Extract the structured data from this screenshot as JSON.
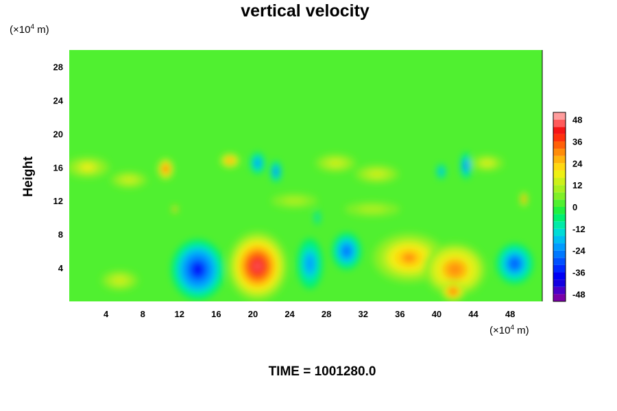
{
  "chart_data": {
    "type": "heatmap",
    "title": "vertical velocity",
    "ylabel": "Height",
    "x_unit_base": "(×10",
    "x_unit_exp": "4",
    "x_unit_tail": " m)",
    "y_unit_base": "(×10",
    "y_unit_exp": "4",
    "y_unit_tail": " m)",
    "xlim": [
      0,
      51.5
    ],
    "ylim": [
      0,
      30
    ],
    "x_ticks": [
      4,
      8,
      12,
      16,
      20,
      24,
      28,
      32,
      36,
      40,
      44,
      48
    ],
    "y_ticks": [
      4,
      8,
      12,
      16,
      20,
      24,
      28
    ],
    "colorbar": {
      "range": [
        -52,
        52
      ],
      "ticks": [
        48,
        36,
        24,
        12,
        0,
        -12,
        -24,
        -36,
        -48
      ],
      "levels": [
        {
          "lo": -52,
          "hi": -48,
          "color": "#7a00a8"
        },
        {
          "lo": -48,
          "hi": -44,
          "color": "#4a00c8"
        },
        {
          "lo": -44,
          "hi": -40,
          "color": "#1400e0"
        },
        {
          "lo": -40,
          "hi": -36,
          "color": "#0000f5"
        },
        {
          "lo": -36,
          "hi": -32,
          "color": "#0028ff"
        },
        {
          "lo": -32,
          "hi": -28,
          "color": "#0050ff"
        },
        {
          "lo": -28,
          "hi": -24,
          "color": "#0078ff"
        },
        {
          "lo": -24,
          "hi": -20,
          "color": "#009cff"
        },
        {
          "lo": -20,
          "hi": -16,
          "color": "#00bef2"
        },
        {
          "lo": -16,
          "hi": -12,
          "color": "#00dcd6"
        },
        {
          "lo": -12,
          "hi": -8,
          "color": "#00eba8"
        },
        {
          "lo": -8,
          "hi": -4,
          "color": "#00f070"
        },
        {
          "lo": -4,
          "hi": 0,
          "color": "#20f040"
        },
        {
          "lo": 0,
          "hi": 4,
          "color": "#50f030"
        },
        {
          "lo": 4,
          "hi": 8,
          "color": "#80f028"
        },
        {
          "lo": 8,
          "hi": 12,
          "color": "#a8f020"
        },
        {
          "lo": 12,
          "hi": 16,
          "color": "#cdf01a"
        },
        {
          "lo": 16,
          "hi": 20,
          "color": "#eef014"
        },
        {
          "lo": 20,
          "hi": 24,
          "color": "#ffd810"
        },
        {
          "lo": 24,
          "hi": 28,
          "color": "#ffb40c"
        },
        {
          "lo": 28,
          "hi": 32,
          "color": "#ff8c08"
        },
        {
          "lo": 32,
          "hi": 36,
          "color": "#ff6008"
        },
        {
          "lo": 36,
          "hi": 40,
          "color": "#ff300c"
        },
        {
          "lo": 40,
          "hi": 44,
          "color": "#f51414"
        },
        {
          "lo": 44,
          "hi": 48,
          "color": "#ff5a5a"
        },
        {
          "lo": 48,
          "hi": 52,
          "color": "#ff9c9c"
        }
      ]
    },
    "field_features": [
      {
        "x": 14.0,
        "y": 3.8,
        "rx": 2.9,
        "ry": 3.6,
        "value": -38
      },
      {
        "x": 20.5,
        "y": 4.2,
        "rx": 3.3,
        "ry": 4.2,
        "value": 46
      },
      {
        "x": 26.2,
        "y": 4.5,
        "rx": 1.4,
        "ry": 3.0,
        "value": -24
      },
      {
        "x": 30.2,
        "y": 6.0,
        "rx": 1.6,
        "ry": 2.2,
        "value": -30
      },
      {
        "x": 37.0,
        "y": 5.2,
        "rx": 4.0,
        "ry": 3.0,
        "value": 28
      },
      {
        "x": 42.0,
        "y": 3.8,
        "rx": 3.4,
        "ry": 3.2,
        "value": 30
      },
      {
        "x": 41.8,
        "y": 1.2,
        "rx": 1.3,
        "ry": 1.2,
        "value": 38
      },
      {
        "x": 48.5,
        "y": 4.5,
        "rx": 2.0,
        "ry": 2.4,
        "value": -32
      },
      {
        "x": 10.5,
        "y": 15.8,
        "rx": 0.9,
        "ry": 1.3,
        "value": 38
      },
      {
        "x": 17.5,
        "y": 16.8,
        "rx": 1.1,
        "ry": 0.9,
        "value": 32
      },
      {
        "x": 20.5,
        "y": 16.5,
        "rx": 0.8,
        "ry": 1.3,
        "value": -26
      },
      {
        "x": 22.5,
        "y": 15.5,
        "rx": 0.6,
        "ry": 1.3,
        "value": -30
      },
      {
        "x": 43.2,
        "y": 16.2,
        "rx": 0.6,
        "ry": 1.6,
        "value": -30
      },
      {
        "x": 40.5,
        "y": 15.5,
        "rx": 0.5,
        "ry": 0.9,
        "value": -22
      },
      {
        "x": 49.5,
        "y": 12.2,
        "rx": 0.4,
        "ry": 0.9,
        "value": 36
      },
      {
        "x": 11.5,
        "y": 11.0,
        "rx": 0.3,
        "ry": 0.5,
        "value": 36
      },
      {
        "x": 27.0,
        "y": 10.0,
        "rx": 0.3,
        "ry": 0.9,
        "value": -18
      },
      {
        "x": 2.0,
        "y": 16.0,
        "rx": 2.4,
        "ry": 1.3,
        "value": 16
      },
      {
        "x": 6.5,
        "y": 14.5,
        "rx": 2.0,
        "ry": 1.0,
        "value": 14
      },
      {
        "x": 29.0,
        "y": 16.5,
        "rx": 2.2,
        "ry": 1.1,
        "value": 14
      },
      {
        "x": 33.5,
        "y": 15.2,
        "rx": 2.4,
        "ry": 1.1,
        "value": 14
      },
      {
        "x": 45.5,
        "y": 16.5,
        "rx": 1.8,
        "ry": 1.0,
        "value": 12
      },
      {
        "x": 5.5,
        "y": 2.5,
        "rx": 2.0,
        "ry": 1.2,
        "value": 14
      },
      {
        "x": 33.0,
        "y": 11.0,
        "rx": 3.0,
        "ry": 0.9,
        "value": 10
      },
      {
        "x": 24.5,
        "y": 12.0,
        "rx": 2.5,
        "ry": 0.9,
        "value": 8
      }
    ],
    "time_label": "TIME = 1001280.0"
  }
}
